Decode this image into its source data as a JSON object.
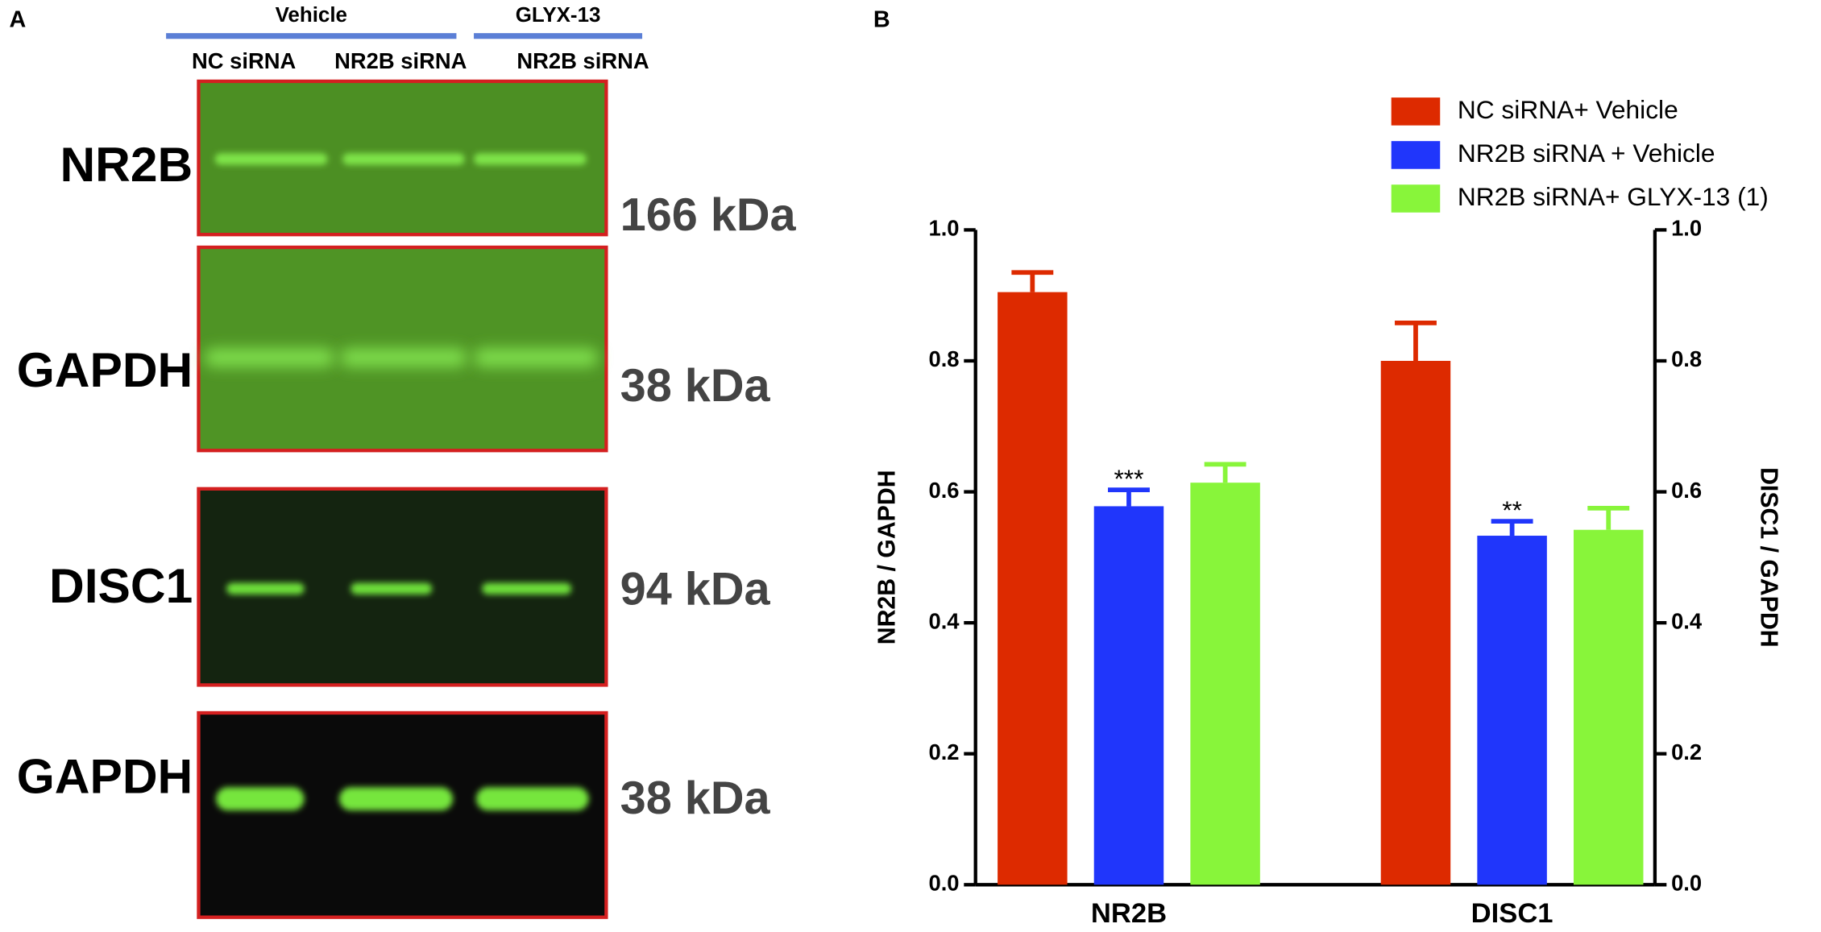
{
  "panel_a": {
    "label": "A",
    "groups": [
      "Vehicle",
      "GLYX-13"
    ],
    "lanes": [
      "NC siRNA",
      "NR2B siRNA",
      "NR2B siRNA"
    ],
    "blots": [
      {
        "protein": "NR2B",
        "size": "166 kDa"
      },
      {
        "protein": "GAPDH",
        "size": "38 kDa"
      },
      {
        "protein": "DISC1",
        "size": "94 kDa"
      },
      {
        "protein": "GAPDH",
        "size": "38 kDa"
      }
    ]
  },
  "chart_data": {
    "type": "bar",
    "panel_label": "B",
    "categories": [
      "NR2B",
      "DISC1"
    ],
    "y_label": "NR2B / GAPDH",
    "y2_label": "DISC1 / GAPDH",
    "ylim": [
      0,
      1
    ],
    "yticks": [
      {
        "value": 0,
        "label": "0.0"
      },
      0.2,
      0.4,
      0.6,
      0.8,
      {
        "value": 1,
        "label": "1.0"
      }
    ],
    "y2lim": [
      0,
      1
    ],
    "y2ticks": [
      {
        "value": 0,
        "label": "0.0"
      },
      0.2,
      0.4,
      0.6,
      0.8,
      {
        "value": 1,
        "label": "1.0"
      }
    ],
    "legend": "top-right",
    "series": [
      {
        "name": "NC siRNA+ Vehicle",
        "color": "#dd2a00",
        "values": [
          0.905,
          0.8
        ],
        "errors": [
          0.03,
          0.058
        ]
      },
      {
        "name": "NR2B siRNA + Vehicle",
        "color": "#2036fb",
        "values": [
          0.578,
          0.533
        ],
        "errors": [
          0.025,
          0.022
        ],
        "significance": [
          "***",
          "**"
        ]
      },
      {
        "name": "NR2B siRNA+ GLYX-13 (1)",
        "color": "#88f53a",
        "values": [
          0.614,
          0.542
        ],
        "errors": [
          0.028,
          0.033
        ]
      }
    ]
  }
}
